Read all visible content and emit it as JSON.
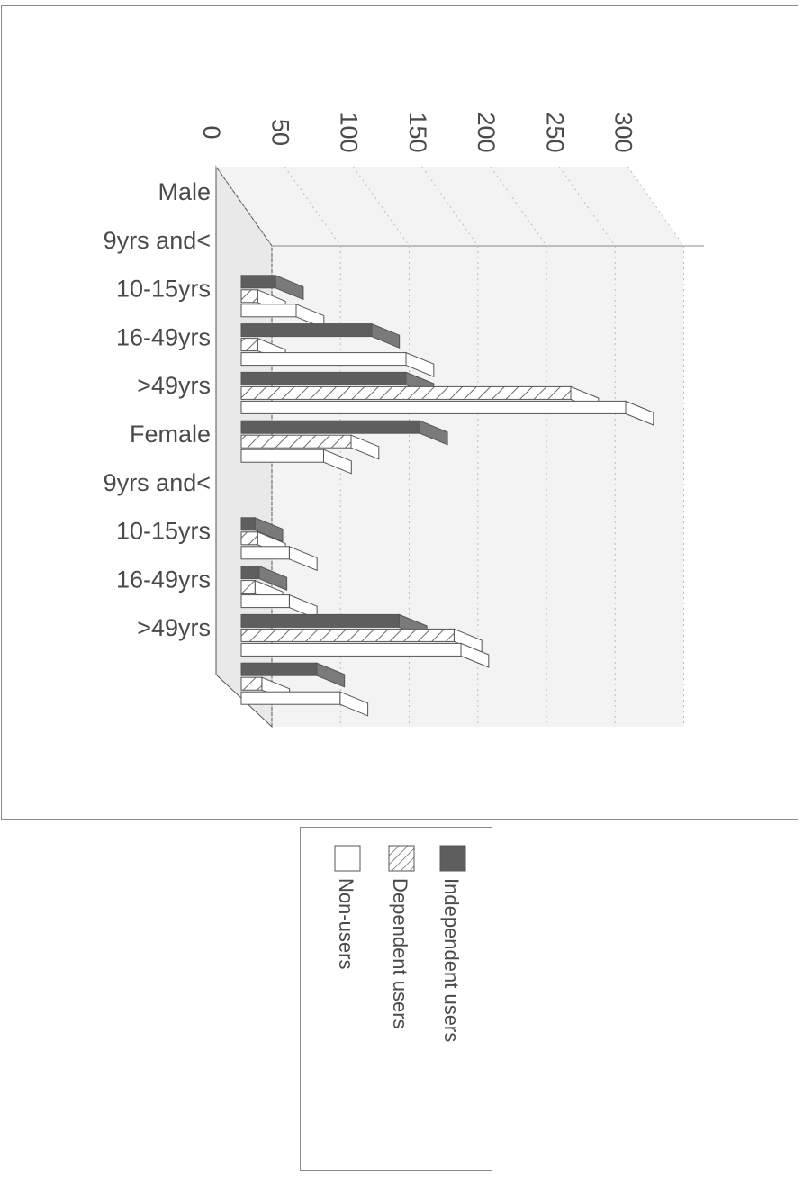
{
  "chart_data": {
    "type": "bar",
    "orientation": "horizontal-3d",
    "categories": [
      "Male",
      "9yrs and<",
      "10-15yrs",
      "16-49yrs",
      ">49yrs",
      "Female",
      "9yrs and<",
      "10-15yrs",
      "16-49yrs",
      ">49yrs"
    ],
    "series": [
      {
        "name": "Independent users",
        "values": [
          null,
          25,
          95,
          120,
          130,
          null,
          10,
          13,
          115,
          55
        ]
      },
      {
        "name": "Dependent users",
        "values": [
          null,
          12,
          12,
          240,
          80,
          null,
          12,
          10,
          155,
          15
        ]
      },
      {
        "name": "Non-users",
        "values": [
          null,
          40,
          120,
          280,
          60,
          null,
          35,
          35,
          160,
          72
        ]
      }
    ],
    "axis_ticks": [
      "0",
      "50",
      "100",
      "150",
      "200",
      "250",
      "300"
    ],
    "ylim": [
      0,
      300
    ],
    "grid": true,
    "legend_position": "bottom"
  },
  "colors": {
    "independent": "#5e5e5e",
    "dependent_hatch": "#6a6a6a",
    "nonusers": "#ffffff",
    "grid": "#bdbdbd",
    "wall": "#f3f3f3",
    "outline": "#555555"
  }
}
